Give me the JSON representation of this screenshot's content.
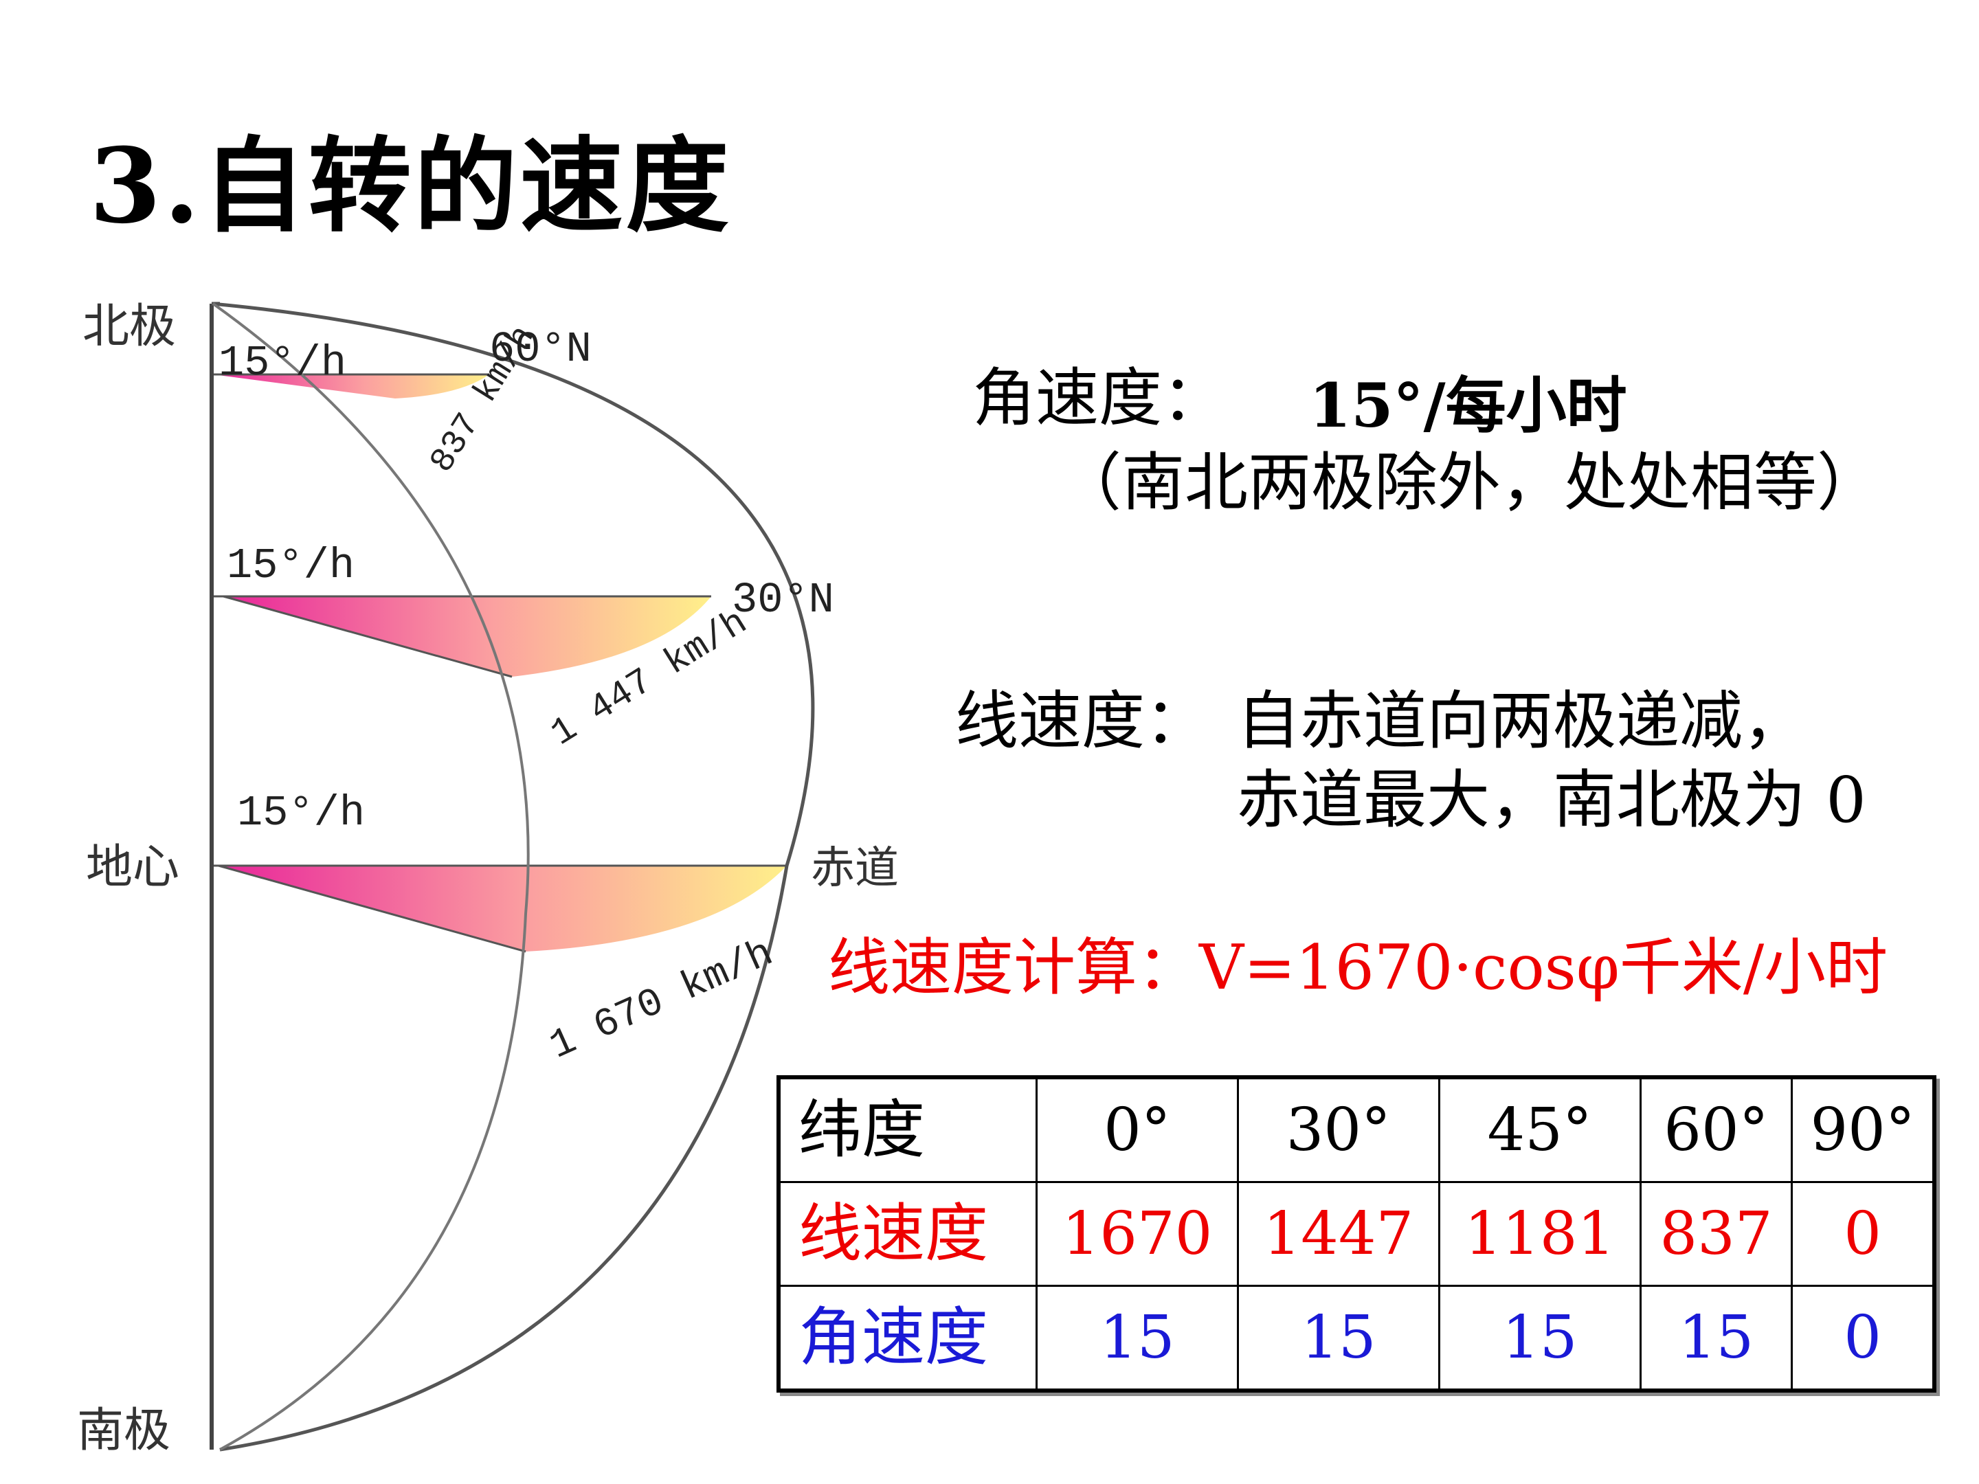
{
  "title": "3.自转的速度",
  "diagram": {
    "north_pole": "北极",
    "center": "地心",
    "south_pole": "南极",
    "equator": "赤道",
    "lat60": "60°N",
    "lat30": "30°N",
    "angular_60": "15°/h",
    "angular_30": "15°/h",
    "angular_0": "15°/h",
    "speed_60": "837 km/h",
    "speed_30": "1 447 km/h",
    "speed_0": "1 670 km/h",
    "colors": {
      "wedge_start": "#e8259a",
      "wedge_end": "#fff08a",
      "outline": "#555555"
    }
  },
  "angular_speed": {
    "label": "角速度：",
    "value": "15°/每小时",
    "note": "（南北两极除外，处处相等）"
  },
  "linear_speed": {
    "label": "线速度：",
    "line1": "自赤道向两极递减，",
    "line2": "赤道最大，南北极为 0"
  },
  "formula": "线速度计算：V=1670·cosφ千米/小时",
  "table": {
    "header": [
      "纬度",
      "0°",
      "30°",
      "45°",
      "60°",
      "90°"
    ],
    "linear": [
      "线速度",
      "1670",
      "1447",
      "1181",
      "837",
      "0"
    ],
    "angular": [
      "角速度",
      "15",
      "15",
      "15",
      "15",
      "0"
    ],
    "colors": {
      "linear": "#ee0000",
      "angular": "#1a1ad6"
    }
  }
}
